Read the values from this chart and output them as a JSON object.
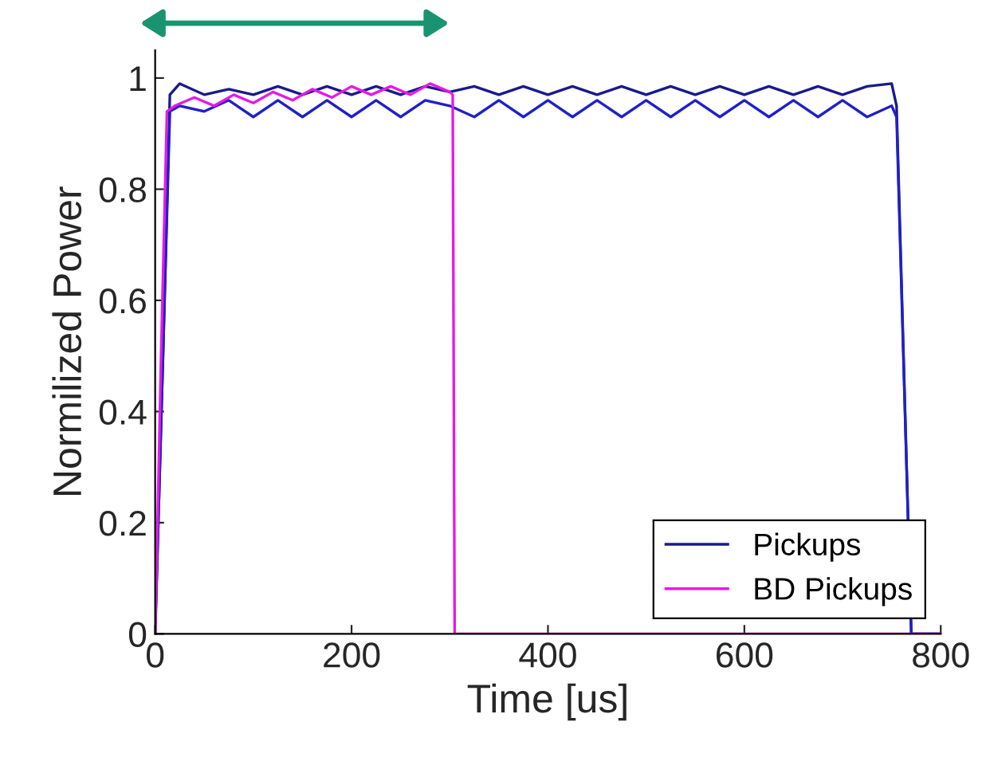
{
  "chart_data": {
    "type": "line",
    "xlabel": "Time [us]",
    "ylabel": "Normilized Power",
    "xlim": [
      0,
      800
    ],
    "ylim": [
      0,
      1.05
    ],
    "xticks": [
      0,
      200,
      400,
      600,
      800
    ],
    "yticks": [
      0,
      0.2,
      0.4,
      0.6,
      0.8,
      1
    ],
    "grid": false,
    "legend": "bottom right",
    "line_style": "solid",
    "marker": "none",
    "series": [
      {
        "name": "Pickups",
        "color": "#1a1a8c",
        "x": [
          0,
          8,
          15,
          25,
          50,
          75,
          100,
          125,
          150,
          175,
          200,
          225,
          250,
          275,
          300,
          325,
          350,
          375,
          400,
          425,
          450,
          475,
          500,
          525,
          550,
          575,
          600,
          625,
          650,
          675,
          700,
          725,
          750,
          755,
          770,
          800
        ],
        "values": [
          0,
          0.5,
          0.97,
          0.99,
          0.97,
          0.98,
          0.97,
          0.985,
          0.97,
          0.985,
          0.97,
          0.985,
          0.97,
          0.985,
          0.975,
          0.985,
          0.97,
          0.985,
          0.97,
          0.985,
          0.97,
          0.985,
          0.97,
          0.985,
          0.97,
          0.985,
          0.97,
          0.985,
          0.97,
          0.985,
          0.97,
          0.985,
          0.99,
          0.95,
          0,
          0
        ]
      },
      {
        "color": "#2020c8",
        "x": [
          0,
          8,
          15,
          25,
          50,
          75,
          100,
          125,
          150,
          175,
          200,
          225,
          250,
          275,
          300,
          325,
          350,
          375,
          400,
          425,
          450,
          475,
          500,
          525,
          550,
          575,
          600,
          625,
          650,
          675,
          700,
          725,
          750,
          755,
          770,
          800
        ],
        "values": [
          0,
          0.5,
          0.94,
          0.95,
          0.94,
          0.96,
          0.93,
          0.96,
          0.93,
          0.96,
          0.93,
          0.96,
          0.93,
          0.96,
          0.95,
          0.93,
          0.96,
          0.93,
          0.96,
          0.93,
          0.96,
          0.93,
          0.96,
          0.93,
          0.96,
          0.93,
          0.96,
          0.93,
          0.96,
          0.93,
          0.96,
          0.93,
          0.95,
          0.93,
          0,
          0
        ]
      },
      {
        "name": "BD Pickups",
        "color": "#e619e6",
        "x": [
          0,
          6,
          12,
          20,
          40,
          60,
          80,
          100,
          120,
          140,
          160,
          180,
          200,
          220,
          240,
          260,
          280,
          300,
          303,
          305,
          800
        ],
        "values": [
          0,
          0.5,
          0.94,
          0.95,
          0.965,
          0.95,
          0.97,
          0.955,
          0.975,
          0.96,
          0.98,
          0.965,
          0.985,
          0.97,
          0.985,
          0.97,
          0.99,
          0.975,
          0.97,
          0,
          0
        ]
      }
    ]
  }
}
